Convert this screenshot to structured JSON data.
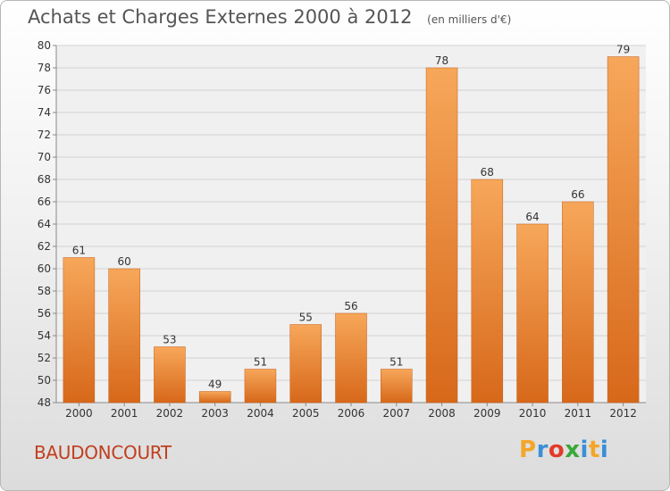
{
  "header": {
    "title": "Achats et Charges Externes 2000 à 2012",
    "unit": "(en milliers d'€)"
  },
  "commune": "BAUDONCOURT",
  "logo": {
    "letters": [
      "P",
      "r",
      "o",
      "x",
      "i",
      "t",
      "i"
    ],
    "colors": [
      "#f3a62a",
      "#3a8fd6",
      "#e23b2a",
      "#3aa83a",
      "#3a8fd6",
      "#f3a62a",
      "#3a8fd6"
    ]
  },
  "chart_data": {
    "type": "bar",
    "title": "Achats et Charges Externes 2000 à 2012",
    "subtitle": "(en milliers d'€)",
    "categories": [
      "2000",
      "2001",
      "2002",
      "2003",
      "2004",
      "2005",
      "2006",
      "2007",
      "2008",
      "2009",
      "2010",
      "2011",
      "2012"
    ],
    "values": [
      61,
      60,
      53,
      49,
      51,
      55,
      56,
      51,
      78,
      68,
      64,
      66,
      79
    ],
    "ylim": [
      48,
      80
    ],
    "yticks": [
      48,
      50,
      52,
      54,
      56,
      58,
      60,
      62,
      64,
      66,
      68,
      70,
      72,
      74,
      76,
      78,
      80
    ],
    "grid": true,
    "bar_color_top": "#f7a75a",
    "bar_color_bottom": "#d7681a"
  }
}
